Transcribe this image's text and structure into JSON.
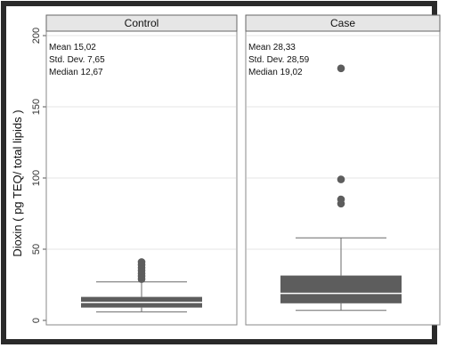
{
  "chart_data": {
    "type": "box",
    "ylabel": "Dioxin ( pg TEQ/ total lipids )",
    "ylim": [
      0,
      200
    ],
    "yticks": [
      0,
      50,
      100,
      150,
      200
    ],
    "grid": true,
    "panels": [
      {
        "title": "Control",
        "stats_text": [
          "Mean 15,02",
          "Std. Dev. 7,65",
          "Median 12,67"
        ],
        "box": {
          "whisker_low": 6,
          "q1": 9,
          "median": 12.67,
          "q3": 16.5,
          "whisker_high": 27
        },
        "outliers": [
          29,
          31,
          33,
          35,
          37,
          39,
          41
        ]
      },
      {
        "title": "Case",
        "stats_text": [
          "Mean 28,33",
          "Std. Dev. 28,59",
          "Median 19,02"
        ],
        "box": {
          "whisker_low": 7,
          "q1": 12,
          "median": 19.02,
          "q3": 31.5,
          "whisker_high": 58
        },
        "outliers": [
          82,
          85,
          99,
          177
        ]
      }
    ]
  },
  "colors": {
    "frame_border": "#2a2a2a",
    "background": "#ffffff",
    "header_fill": "#e6e6e6",
    "gridline": "#e4e4e4",
    "box_fill": "#5d5d5d",
    "median_line": "#ffffff",
    "whisker": "#6a6a6a",
    "outlier": "#5d5d5d",
    "tick_text": "#333333"
  }
}
